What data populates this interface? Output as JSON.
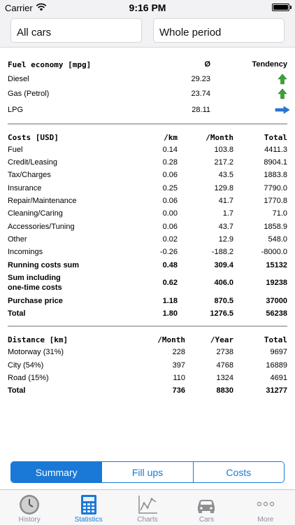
{
  "status": {
    "carrier": "Carrier",
    "time": "9:16 PM"
  },
  "filters": {
    "cars": "All cars",
    "period": "Whole period"
  },
  "fuel": {
    "header": {
      "title": "Fuel economy [mpg]",
      "avg": "Ø",
      "tendency": "Tendency"
    },
    "rows": [
      {
        "label": "Diesel",
        "value": "29.23",
        "tendency_icon": "arrow-up-green-icon"
      },
      {
        "label": "Gas (Petrol)",
        "value": "23.74",
        "tendency_icon": "arrow-up-green-icon"
      },
      {
        "label": "LPG",
        "value": "28.11",
        "tendency_icon": "arrow-right-blue-icon"
      }
    ]
  },
  "costs": {
    "header": {
      "title": "Costs [USD]",
      "c1": "/km",
      "c2": "/Month",
      "c3": "Total"
    },
    "rows": [
      {
        "label": "Fuel",
        "c1": "0.14",
        "c2": "103.8",
        "c3": "4411.3",
        "bold": false
      },
      {
        "label": "Credit/Leasing",
        "c1": "0.28",
        "c2": "217.2",
        "c3": "8904.1",
        "bold": false
      },
      {
        "label": "Tax/Charges",
        "c1": "0.06",
        "c2": "43.5",
        "c3": "1883.8",
        "bold": false
      },
      {
        "label": "Insurance",
        "c1": "0.25",
        "c2": "129.8",
        "c3": "7790.0",
        "bold": false
      },
      {
        "label": "Repair/Maintenance",
        "c1": "0.06",
        "c2": "41.7",
        "c3": "1770.8",
        "bold": false
      },
      {
        "label": "Cleaning/Caring",
        "c1": "0.00",
        "c2": "1.7",
        "c3": "71.0",
        "bold": false
      },
      {
        "label": "Accessories/Tuning",
        "c1": "0.06",
        "c2": "43.7",
        "c3": "1858.9",
        "bold": false
      },
      {
        "label": "Other",
        "c1": "0.02",
        "c2": "12.9",
        "c3": "548.0",
        "bold": false
      },
      {
        "label": "Incomings",
        "c1": "-0.26",
        "c2": "-188.2",
        "c3": "-8000.0",
        "bold": false
      },
      {
        "label": "Running costs sum",
        "c1": "0.48",
        "c2": "309.4",
        "c3": "15132",
        "bold": true
      }
    ],
    "sum_incl": {
      "label_line1": "Sum including",
      "label_line2": "one-time costs",
      "c1": "0.62",
      "c2": "406.0",
      "c3": "19238"
    },
    "tail_rows": [
      {
        "label": "Purchase price",
        "c1": "1.18",
        "c2": "870.5",
        "c3": "37000",
        "bold": true
      },
      {
        "label": "Total",
        "c1": "1.80",
        "c2": "1276.5",
        "c3": "56238",
        "bold": true
      }
    ]
  },
  "distance": {
    "header": {
      "title": "Distance [km]",
      "c1": "/Month",
      "c2": "/Year",
      "c3": "Total"
    },
    "rows": [
      {
        "label": "Motorway (31%)",
        "c1": "228",
        "c2": "2738",
        "c3": "9697",
        "bold": false
      },
      {
        "label": "City (54%)",
        "c1": "397",
        "c2": "4768",
        "c3": "16889",
        "bold": false
      },
      {
        "label": "Road (15%)",
        "c1": "110",
        "c2": "1324",
        "c3": "4691",
        "bold": false
      },
      {
        "label": "Total",
        "c1": "736",
        "c2": "8830",
        "c3": "31277",
        "bold": true
      }
    ]
  },
  "segments": [
    "Summary",
    "Fill ups",
    "Costs"
  ],
  "tabs": [
    {
      "label": "History",
      "icon": "clock-icon"
    },
    {
      "label": "Statistics",
      "icon": "calculator-icon"
    },
    {
      "label": "Charts",
      "icon": "line-chart-icon"
    },
    {
      "label": "Cars",
      "icon": "car-icon"
    },
    {
      "label": "More",
      "icon": "more-dots-icon"
    }
  ],
  "colors": {
    "accent": "#1a78d6",
    "up_green": "#3aa335",
    "right_blue": "#2878d8"
  }
}
